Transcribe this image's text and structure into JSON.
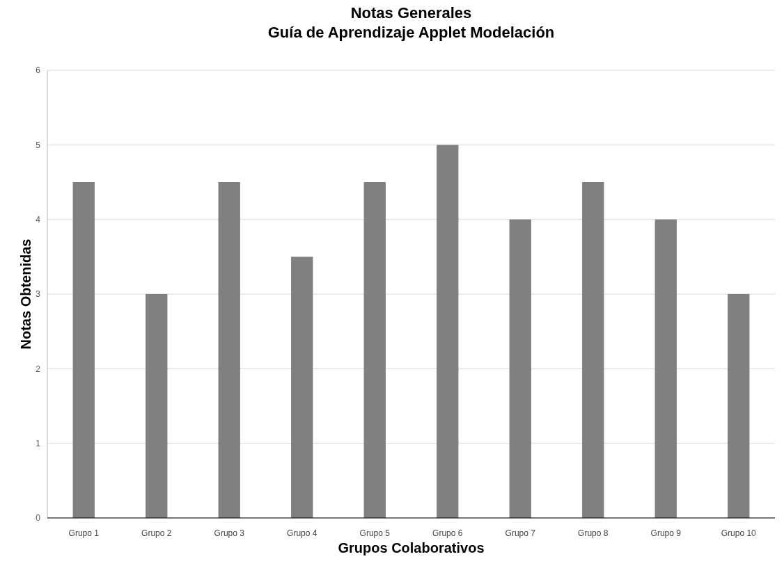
{
  "chart_data": {
    "type": "bar",
    "title": "Notas Generales\nGuía de Aprendizaje Applet Modelación",
    "xlabel": "Grupos Colaborativos",
    "ylabel": "Notas Obtenidas",
    "categories": [
      "Grupo 1",
      "Grupo 2",
      "Grupo 3",
      "Grupo 4",
      "Grupo 5",
      "Grupo 6",
      "Grupo 7",
      "Grupo 8",
      "Grupo 9",
      "Grupo 10"
    ],
    "values": [
      4.5,
      3,
      4.5,
      3.5,
      4.5,
      5,
      4,
      4.5,
      4,
      3
    ],
    "color": "#808080",
    "ylim": [
      0,
      6
    ],
    "yticks": [
      0,
      1,
      2,
      3,
      4,
      5,
      6
    ],
    "grid": "y"
  }
}
